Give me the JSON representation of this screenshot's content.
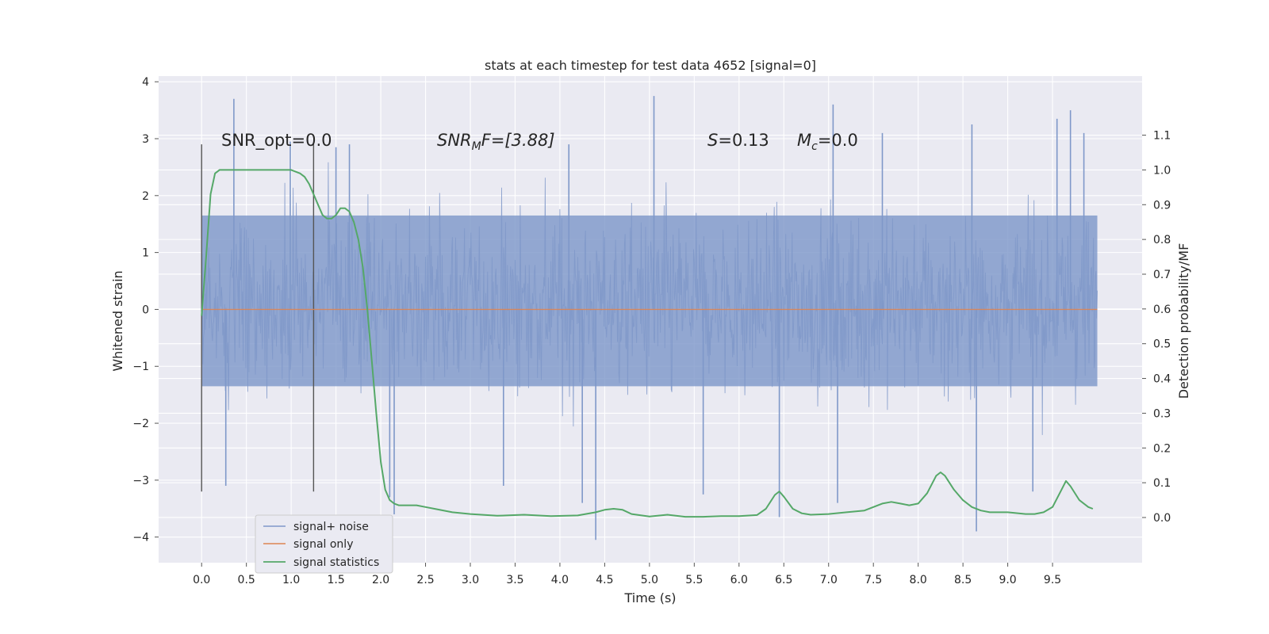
{
  "chart_data": {
    "type": "line",
    "title": "stats at each timestep for test data 4652 [signal=0]",
    "xlabel": "Time (s)",
    "ylabel": "Whitened strain",
    "y2label": "Detection probability/MF",
    "xlim": [
      -0.48,
      10.5
    ],
    "ylim": [
      -4.45,
      4.1
    ],
    "y2lim": [
      -0.13,
      1.27
    ],
    "x_ticks": [
      "0.0",
      "0.5",
      "1.0",
      "1.5",
      "2.0",
      "2.5",
      "3.0",
      "3.5",
      "4.0",
      "4.5",
      "5.0",
      "5.5",
      "6.0",
      "6.5",
      "7.0",
      "7.5",
      "8.0",
      "8.5",
      "9.0",
      "9.5"
    ],
    "y_ticks": [
      "−4",
      "−3",
      "−2",
      "−1",
      "0",
      "1",
      "2",
      "3",
      "4"
    ],
    "y2_ticks": [
      "0.0",
      "0.1",
      "0.2",
      "0.3",
      "0.4",
      "0.5",
      "0.6",
      "0.7",
      "0.8",
      "0.9",
      "1.0",
      "1.1"
    ],
    "grid": true,
    "legend_position": "lower-left",
    "colors": {
      "noise": "#7f98c9",
      "signal_only": "#dd8452",
      "statistics": "#55a868",
      "markers": "#555555",
      "plot_bg": "#eaeaf2",
      "grid": "#ffffff"
    },
    "series": [
      {
        "name": "signal+ noise",
        "axis": "left",
        "x_range": [
          0.0,
          10.0
        ],
        "noise_band": [
          -1.35,
          1.65
        ],
        "spikes": [
          {
            "x": 0.36,
            "y": 3.7
          },
          {
            "x": 0.27,
            "y": -3.1
          },
          {
            "x": 0.99,
            "y": 2.95
          },
          {
            "x": 2.15,
            "y": -3.6
          },
          {
            "x": 2.1,
            "y": -3.3
          },
          {
            "x": 3.37,
            "y": -3.1
          },
          {
            "x": 4.4,
            "y": -4.05
          },
          {
            "x": 4.25,
            "y": -3.4
          },
          {
            "x": 4.1,
            "y": 2.9
          },
          {
            "x": 5.05,
            "y": 3.75
          },
          {
            "x": 5.6,
            "y": -3.25
          },
          {
            "x": 6.45,
            "y": -3.65
          },
          {
            "x": 7.05,
            "y": 3.6
          },
          {
            "x": 7.1,
            "y": -3.4
          },
          {
            "x": 8.6,
            "y": 3.25
          },
          {
            "x": 8.65,
            "y": -3.9
          },
          {
            "x": 9.28,
            "y": -3.2
          },
          {
            "x": 9.7,
            "y": 3.5
          },
          {
            "x": 9.85,
            "y": 3.1
          },
          {
            "x": 9.55,
            "y": 3.35
          },
          {
            "x": 1.5,
            "y": 2.85
          },
          {
            "x": 1.65,
            "y": 2.9
          },
          {
            "x": 7.6,
            "y": 3.1
          }
        ]
      },
      {
        "name": "signal only",
        "axis": "left",
        "x": [
          0.0,
          10.0
        ],
        "y": [
          0.0,
          0.0
        ]
      },
      {
        "name": "signal statistics",
        "axis": "right",
        "x": [
          0.0,
          0.05,
          0.1,
          0.15,
          0.2,
          0.3,
          0.4,
          0.5,
          0.6,
          0.7,
          0.8,
          0.9,
          1.0,
          1.1,
          1.15,
          1.2,
          1.25,
          1.3,
          1.35,
          1.4,
          1.45,
          1.5,
          1.55,
          1.6,
          1.65,
          1.7,
          1.75,
          1.8,
          1.85,
          1.9,
          1.95,
          2.0,
          2.05,
          2.1,
          2.15,
          2.2,
          2.3,
          2.4,
          2.5,
          2.6,
          2.8,
          3.0,
          3.3,
          3.6,
          3.9,
          4.2,
          4.4,
          4.5,
          4.6,
          4.7,
          4.8,
          5.0,
          5.2,
          5.4,
          5.6,
          5.8,
          6.0,
          6.2,
          6.3,
          6.4,
          6.45,
          6.5,
          6.6,
          6.7,
          6.8,
          7.0,
          7.2,
          7.4,
          7.5,
          7.6,
          7.7,
          7.8,
          7.9,
          8.0,
          8.1,
          8.2,
          8.25,
          8.3,
          8.4,
          8.5,
          8.6,
          8.7,
          8.8,
          9.0,
          9.2,
          9.3,
          9.4,
          9.5,
          9.6,
          9.65,
          9.7,
          9.8,
          9.9,
          9.95
        ],
        "y": [
          0.58,
          0.75,
          0.93,
          0.99,
          1.0,
          1.0,
          1.0,
          1.0,
          1.0,
          1.0,
          1.0,
          1.0,
          1.0,
          0.99,
          0.98,
          0.96,
          0.93,
          0.9,
          0.87,
          0.86,
          0.86,
          0.87,
          0.89,
          0.89,
          0.88,
          0.85,
          0.8,
          0.72,
          0.6,
          0.45,
          0.3,
          0.16,
          0.08,
          0.05,
          0.04,
          0.035,
          0.035,
          0.035,
          0.03,
          0.025,
          0.015,
          0.01,
          0.005,
          0.008,
          0.004,
          0.006,
          0.015,
          0.022,
          0.025,
          0.022,
          0.01,
          0.003,
          0.008,
          0.002,
          0.002,
          0.004,
          0.004,
          0.007,
          0.025,
          0.065,
          0.075,
          0.06,
          0.025,
          0.012,
          0.008,
          0.01,
          0.015,
          0.02,
          0.03,
          0.04,
          0.045,
          0.04,
          0.035,
          0.04,
          0.07,
          0.12,
          0.13,
          0.12,
          0.08,
          0.05,
          0.03,
          0.02,
          0.015,
          0.015,
          0.01,
          0.01,
          0.015,
          0.03,
          0.08,
          0.105,
          0.09,
          0.05,
          0.03,
          0.025
        ]
      }
    ],
    "vlines": [
      {
        "x": 0.0,
        "y": [
          -3.2,
          2.9
        ]
      },
      {
        "x": 1.25,
        "y": [
          -3.2,
          2.9
        ]
      }
    ],
    "annotations": {
      "snr_opt": "SNR_opt=0.0",
      "snr_mf_main": "SNR",
      "snr_mf_sub": "M",
      "snr_mf_rest": "F=[3.88]",
      "s_label": "S",
      "s_value": "=0.13",
      "mc_main": "M",
      "mc_sub": "c",
      "mc_value": "=0.0"
    }
  }
}
